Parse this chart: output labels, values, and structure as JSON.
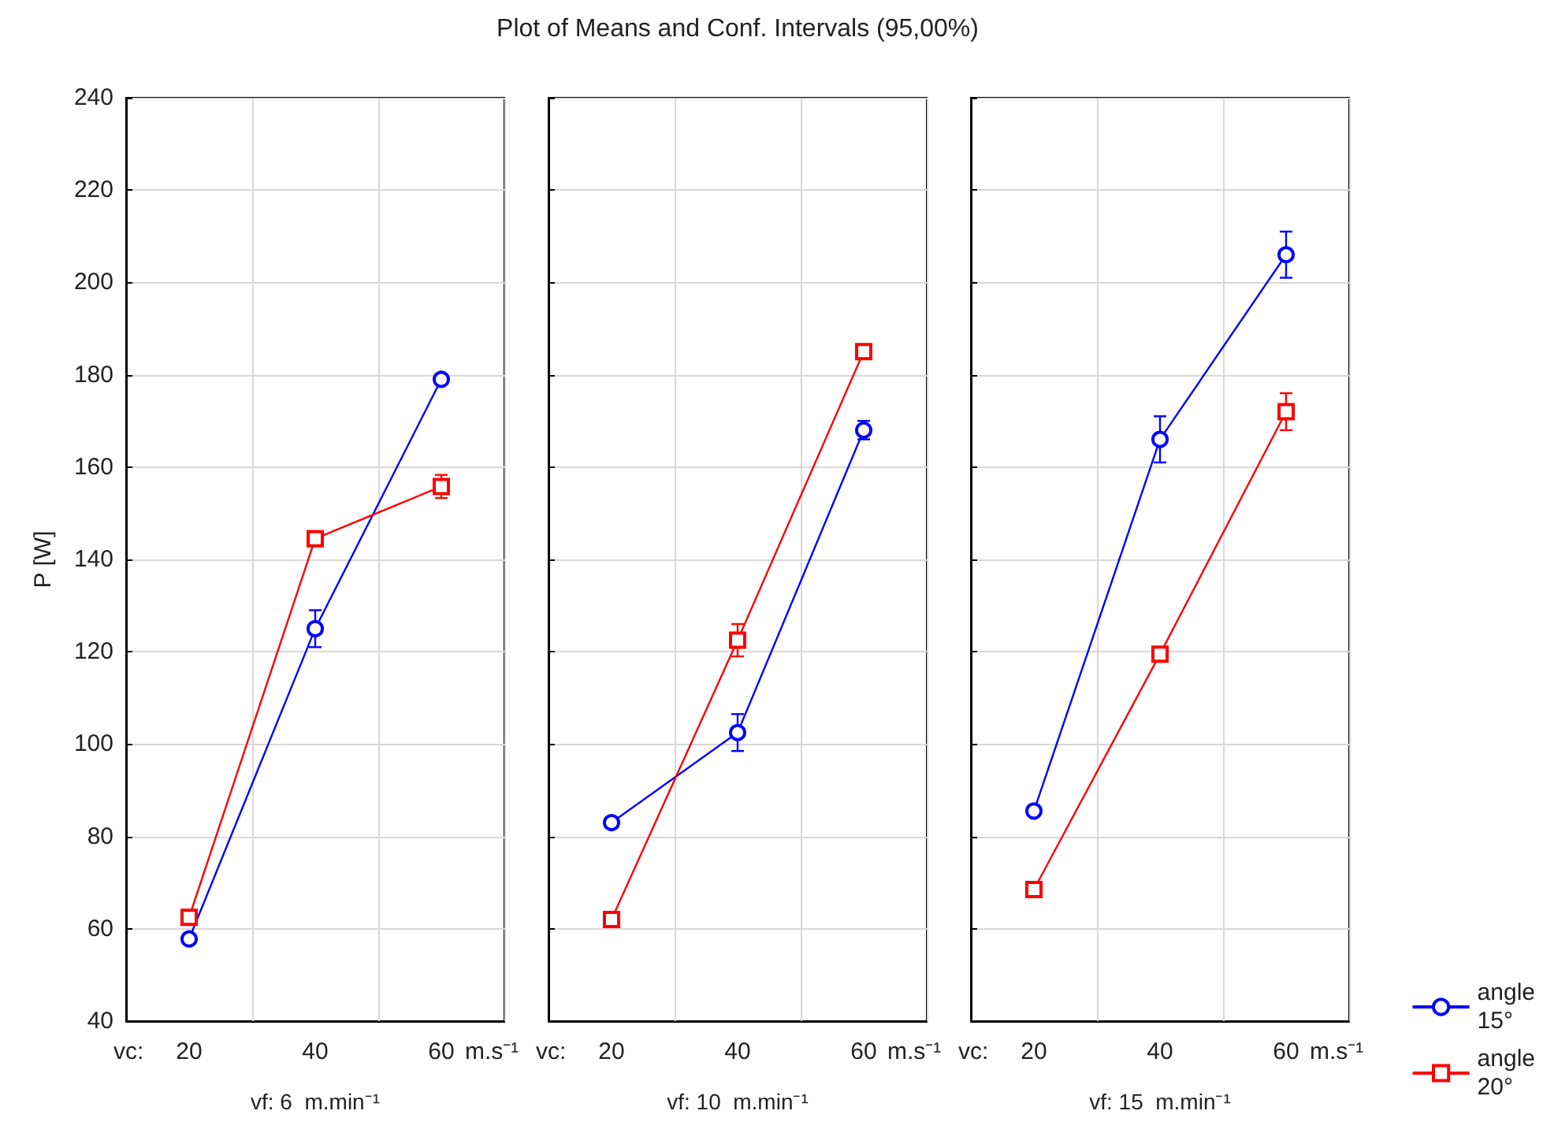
{
  "chart_data": [
    {
      "type": "line",
      "xlabel": "vf: 6  m.min⁻¹",
      "ylabel": "P [W]",
      "categories": [
        "20",
        "40",
        "60"
      ],
      "annotations": [
        "vc:",
        "m.s⁻¹"
      ],
      "series": [
        {
          "color": "#0000ff",
          "marker": "circle",
          "values": [
            57.8,
            125,
            179
          ],
          "errors": [
            1,
            4,
            1
          ]
        },
        {
          "color": "#ff0000",
          "marker": "square",
          "values": [
            62.5,
            144.5,
            155.8
          ],
          "errors": [
            1,
            1,
            2.5
          ]
        }
      ],
      "ylim": [
        40,
        240
      ],
      "yticks": [
        40,
        60,
        80,
        100,
        120,
        140,
        160,
        180,
        200,
        220,
        240
      ],
      "grid": true,
      "legend": false
    },
    {
      "type": "line",
      "title": "Plot of Means and Conf. Intervals (95,00%)",
      "xlabel": "vf: 10  m.min⁻¹",
      "categories": [
        "20",
        "40",
        "60"
      ],
      "annotations": [
        "vc:",
        "m.s⁻¹"
      ],
      "series": [
        {
          "color": "#0000ff",
          "marker": "circle",
          "values": [
            83,
            102.5,
            168
          ],
          "errors": [
            1,
            4,
            2
          ]
        },
        {
          "color": "#ff0000",
          "marker": "square",
          "values": [
            62,
            122.5,
            185
          ],
          "errors": [
            1,
            3.5,
            1.5
          ]
        }
      ],
      "ylim": [
        40,
        240
      ],
      "yticks": [
        40,
        60,
        80,
        100,
        120,
        140,
        160,
        180,
        200,
        220,
        240
      ],
      "grid": true,
      "legend": false,
      "tick_labels": "x"
    },
    {
      "type": "line",
      "xlabel": "vf: 15  m.min⁻¹",
      "categories": [
        "20",
        "40",
        "60"
      ],
      "annotations": [
        "vc:",
        "m.s⁻¹"
      ],
      "series": [
        {
          "name": "angle 15°",
          "color": "#0000ff",
          "marker": "circle",
          "values": [
            85.5,
            166,
            206
          ],
          "errors": [
            1,
            5,
            5
          ]
        },
        {
          "name": "angle 20°",
          "color": "#ff0000",
          "marker": "square",
          "values": [
            68.5,
            119.5,
            172
          ],
          "errors": [
            1,
            1,
            4
          ]
        }
      ],
      "ylim": [
        40,
        240
      ],
      "yticks": [
        40,
        60,
        80,
        100,
        120,
        140,
        160,
        180,
        200,
        220,
        240
      ],
      "grid": true,
      "legend": "bottom right",
      "tick_labels": "x"
    }
  ]
}
